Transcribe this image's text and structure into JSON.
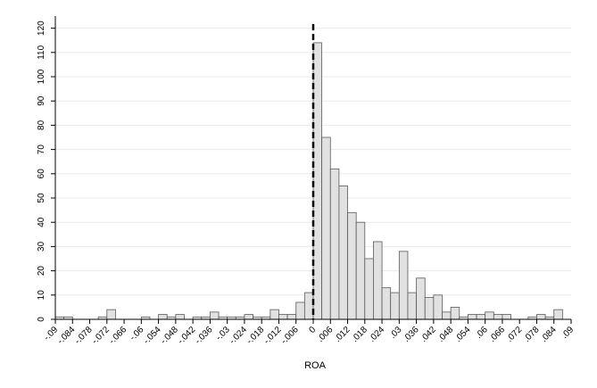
{
  "chart_data": {
    "type": "bar",
    "xlabel": "ROA",
    "ylabel": "",
    "ylim": [
      0,
      120
    ],
    "xlim": [
      -0.09,
      0.09
    ],
    "bin_width": 0.003,
    "grid": "horizontal",
    "vline_x": 0,
    "y_ticks": [
      "0",
      "10",
      "20",
      "30",
      "40",
      "50",
      "60",
      "70",
      "80",
      "90",
      "100",
      "110",
      "120"
    ],
    "x_ticks": [
      {
        "value": -0.09,
        "label": "-.09"
      },
      {
        "value": -0.084,
        "label": "-.084"
      },
      {
        "value": -0.078,
        "label": "-.078"
      },
      {
        "value": -0.072,
        "label": "-.072"
      },
      {
        "value": -0.066,
        "label": "-.066"
      },
      {
        "value": -0.06,
        "label": "-.06"
      },
      {
        "value": -0.054,
        "label": "-.054"
      },
      {
        "value": -0.048,
        "label": "-.048"
      },
      {
        "value": -0.042,
        "label": "-.042"
      },
      {
        "value": -0.036,
        "label": "-.036"
      },
      {
        "value": -0.03,
        "label": "-.03"
      },
      {
        "value": -0.024,
        "label": "-.024"
      },
      {
        "value": -0.018,
        "label": "-.018"
      },
      {
        "value": -0.012,
        "label": "-.012"
      },
      {
        "value": -0.006,
        "label": "-.006"
      },
      {
        "value": 0,
        "label": "0"
      },
      {
        "value": 0.006,
        "label": ".006"
      },
      {
        "value": 0.012,
        "label": ".012"
      },
      {
        "value": 0.018,
        "label": ".018"
      },
      {
        "value": 0.024,
        "label": ".024"
      },
      {
        "value": 0.03,
        "label": ".03"
      },
      {
        "value": 0.036,
        "label": ".036"
      },
      {
        "value": 0.042,
        "label": ".042"
      },
      {
        "value": 0.048,
        "label": ".048"
      },
      {
        "value": 0.054,
        "label": ".054"
      },
      {
        "value": 0.06,
        "label": ".06"
      },
      {
        "value": 0.066,
        "label": ".066"
      },
      {
        "value": 0.072,
        "label": ".072"
      },
      {
        "value": 0.078,
        "label": ".078"
      },
      {
        "value": 0.084,
        "label": ".084"
      },
      {
        "value": 0.09,
        "label": ".09"
      }
    ],
    "bins": [
      {
        "x": -0.0885,
        "value": 1
      },
      {
        "x": -0.0855,
        "value": 1
      },
      {
        "x": -0.0825,
        "value": 0
      },
      {
        "x": -0.0795,
        "value": 0
      },
      {
        "x": -0.0765,
        "value": 0
      },
      {
        "x": -0.0735,
        "value": 1
      },
      {
        "x": -0.0705,
        "value": 4
      },
      {
        "x": -0.0675,
        "value": 0
      },
      {
        "x": -0.0645,
        "value": 0
      },
      {
        "x": -0.0615,
        "value": 0
      },
      {
        "x": -0.0585,
        "value": 1
      },
      {
        "x": -0.0555,
        "value": 0
      },
      {
        "x": -0.0525,
        "value": 2
      },
      {
        "x": -0.0495,
        "value": 1
      },
      {
        "x": -0.0465,
        "value": 2
      },
      {
        "x": -0.0435,
        "value": 0
      },
      {
        "x": -0.0405,
        "value": 1
      },
      {
        "x": -0.0375,
        "value": 1
      },
      {
        "x": -0.0345,
        "value": 3
      },
      {
        "x": -0.0315,
        "value": 1
      },
      {
        "x": -0.0285,
        "value": 1
      },
      {
        "x": -0.0255,
        "value": 1
      },
      {
        "x": -0.0225,
        "value": 2
      },
      {
        "x": -0.0195,
        "value": 1
      },
      {
        "x": -0.0165,
        "value": 1
      },
      {
        "x": -0.0135,
        "value": 4
      },
      {
        "x": -0.0105,
        "value": 2
      },
      {
        "x": -0.0075,
        "value": 2
      },
      {
        "x": -0.0045,
        "value": 7
      },
      {
        "x": -0.0015,
        "value": 11
      },
      {
        "x": 0.0015,
        "value": 114
      },
      {
        "x": 0.0045,
        "value": 75
      },
      {
        "x": 0.0075,
        "value": 62
      },
      {
        "x": 0.0105,
        "value": 55
      },
      {
        "x": 0.0135,
        "value": 44
      },
      {
        "x": 0.0165,
        "value": 40
      },
      {
        "x": 0.0195,
        "value": 25
      },
      {
        "x": 0.0225,
        "value": 32
      },
      {
        "x": 0.0255,
        "value": 13
      },
      {
        "x": 0.0285,
        "value": 11
      },
      {
        "x": 0.0315,
        "value": 28
      },
      {
        "x": 0.0345,
        "value": 11
      },
      {
        "x": 0.0375,
        "value": 17
      },
      {
        "x": 0.0405,
        "value": 9
      },
      {
        "x": 0.0435,
        "value": 10
      },
      {
        "x": 0.0465,
        "value": 3
      },
      {
        "x": 0.0495,
        "value": 5
      },
      {
        "x": 0.0525,
        "value": 1
      },
      {
        "x": 0.0555,
        "value": 2
      },
      {
        "x": 0.0585,
        "value": 2
      },
      {
        "x": 0.0615,
        "value": 3
      },
      {
        "x": 0.0645,
        "value": 2
      },
      {
        "x": 0.0675,
        "value": 2
      },
      {
        "x": 0.0705,
        "value": 0
      },
      {
        "x": 0.0735,
        "value": 0
      },
      {
        "x": 0.0765,
        "value": 1
      },
      {
        "x": 0.0795,
        "value": 2
      },
      {
        "x": 0.0825,
        "value": 1
      },
      {
        "x": 0.0855,
        "value": 4
      }
    ],
    "colors": {
      "bar_fill": "#e1e1e1",
      "bar_stroke": "#5a5a5a",
      "grid": "#eaeaea",
      "axis": "#000000"
    }
  }
}
